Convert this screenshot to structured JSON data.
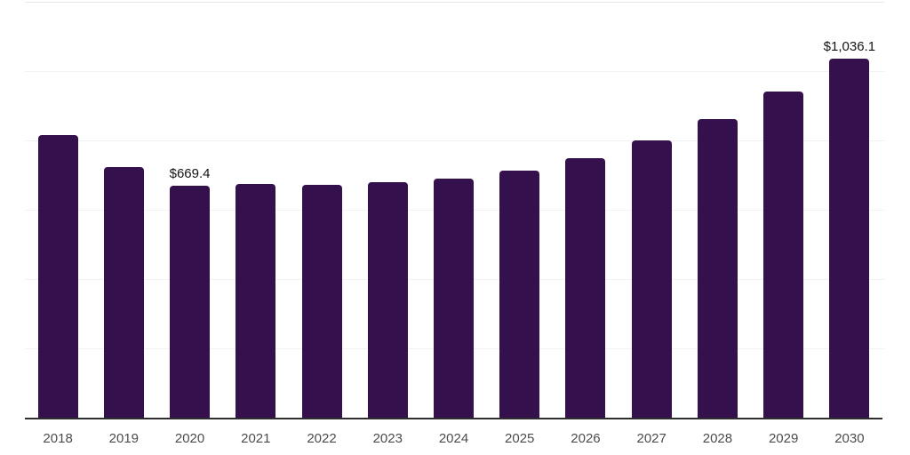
{
  "chart_data": {
    "type": "bar",
    "title": "",
    "xlabel": "",
    "ylabel": "",
    "categories": [
      "2018",
      "2019",
      "2020",
      "2021",
      "2022",
      "2023",
      "2024",
      "2025",
      "2026",
      "2027",
      "2028",
      "2029",
      "2030"
    ],
    "values": [
      815,
      722,
      669.4,
      675,
      673,
      680,
      690,
      713,
      750,
      800,
      862,
      940,
      1036.1
    ],
    "data_labels": [
      {
        "category": "2020",
        "text": "$669.4"
      },
      {
        "category": "2030",
        "text": "$1,036.1"
      }
    ],
    "value_prefix": "$",
    "ylim": [
      0,
      1200
    ],
    "gridline_step": 200,
    "grid": "horizontal",
    "legend": "none"
  },
  "colors": {
    "bar": "#34114C",
    "axis_line": "#2E2E2E",
    "gridline": "#F2F2F2",
    "top_gridline": "#E8E8E8",
    "tick_label": "#4C4C4C",
    "data_label": "#141414",
    "background": "#FFFFFF"
  }
}
